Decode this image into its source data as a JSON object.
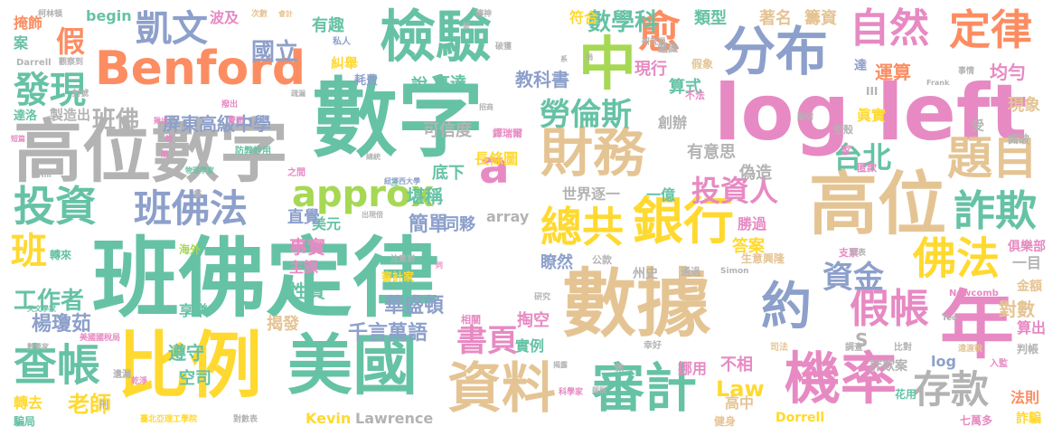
{
  "palette": {
    "green": "#66c2a5",
    "orange": "#fc8d62",
    "blue": "#8da0cb",
    "pink": "#e78ac3",
    "lime": "#a6d854",
    "yellow": "#ffd92f",
    "tan": "#e5c494",
    "gray": "#b3b3b3"
  },
  "words": [
    {
      "id": "w-shuzi",
      "text": "數字",
      "color": "green"
    },
    {
      "id": "w-log-left",
      "text": "log left",
      "color": "pink"
    },
    {
      "id": "w-banfo-dinglu",
      "text": "班佛定律",
      "color": "green"
    },
    {
      "id": "w-gaowei-shuzi",
      "text": "高位數字",
      "color": "gray"
    },
    {
      "id": "w-shuju",
      "text": "數據",
      "color": "tan"
    },
    {
      "id": "w-bili",
      "text": "比例",
      "color": "yellow"
    },
    {
      "id": "w-meiguo",
      "text": "美國",
      "color": "green"
    },
    {
      "id": "w-benford",
      "text": "Benford",
      "color": "orange"
    },
    {
      "id": "w-jianyan",
      "text": "檢驗",
      "color": "green"
    },
    {
      "id": "w-fenbu",
      "text": "分布",
      "color": "blue"
    },
    {
      "id": "w-zhong",
      "text": "中",
      "color": "lime"
    },
    {
      "id": "w-gaowei",
      "text": "高位",
      "color": "tan"
    },
    {
      "id": "w-nian",
      "text": "年",
      "color": "pink"
    },
    {
      "id": "w-caiwu",
      "text": "財務",
      "color": "tan"
    },
    {
      "id": "w-ziliao",
      "text": "資料",
      "color": "tan"
    },
    {
      "id": "w-shenji",
      "text": "審計",
      "color": "green"
    },
    {
      "id": "w-jilu",
      "text": "機率",
      "color": "pink"
    },
    {
      "id": "w-ziran",
      "text": "自然",
      "color": "pink"
    },
    {
      "id": "w-dinglu",
      "text": "定律",
      "color": "orange"
    },
    {
      "id": "w-zonggong",
      "text": "總共",
      "color": "yellow"
    },
    {
      "id": "w-yinhang",
      "text": "銀行",
      "color": "yellow"
    },
    {
      "id": "w-yue",
      "text": "約",
      "color": "blue"
    },
    {
      "id": "w-kaiwen",
      "text": "凱文",
      "color": "blue"
    },
    {
      "id": "w-a",
      "text": "a",
      "color": "pink"
    },
    {
      "id": "w-approx",
      "text": "approx",
      "color": "lime"
    },
    {
      "id": "w-touzi",
      "text": "投資",
      "color": "green"
    },
    {
      "id": "w-banfofa",
      "text": "班佛法",
      "color": "blue"
    },
    {
      "id": "w-chazhang",
      "text": "查帳",
      "color": "green"
    },
    {
      "id": "w-timu",
      "text": "題目",
      "color": "tan"
    },
    {
      "id": "w-foafa",
      "text": "佛法",
      "color": "yellow"
    },
    {
      "id": "w-zhaqi",
      "text": "詐欺",
      "color": "green"
    },
    {
      "id": "w-jiazhang",
      "text": "假帳",
      "color": "pink"
    },
    {
      "id": "w-cunkuan",
      "text": "存款",
      "color": "gray"
    },
    {
      "id": "w-zijin",
      "text": "資金",
      "color": "blue"
    },
    {
      "id": "w-touziren",
      "text": "投資人",
      "color": "pink"
    },
    {
      "id": "w-laolunsi",
      "text": "勞倫斯",
      "color": "green"
    },
    {
      "id": "w-yu",
      "text": "愈",
      "color": "orange"
    },
    {
      "id": "w-taibei",
      "text": "台北",
      "color": "green"
    },
    {
      "id": "w-faxian",
      "text": "發現",
      "color": "green"
    },
    {
      "id": "w-ban",
      "text": "班",
      "color": "yellow"
    },
    {
      "id": "w-jia",
      "text": "假",
      "color": "orange"
    },
    {
      "id": "w-guoli",
      "text": "國立",
      "color": "blue"
    },
    {
      "id": "w-shuxueke",
      "text": "數學科",
      "color": "green"
    },
    {
      "id": "w-fuhe",
      "text": "符合",
      "color": "yellow"
    },
    {
      "id": "w-shuyiye",
      "text": "書頁",
      "color": "pink"
    },
    {
      "id": "w-law",
      "text": "Law",
      "color": "yellow"
    },
    {
      "id": "w-laoshi",
      "text": "老師",
      "color": "yellow"
    },
    {
      "id": "w-pingdong",
      "text": "屏東高級中學",
      "color": "blue"
    },
    {
      "id": "w-banfo",
      "text": "班佛",
      "color": "gray"
    },
    {
      "id": "w-gongzuozhe",
      "text": "工作者",
      "color": "green"
    },
    {
      "id": "w-yangqiongru",
      "text": "楊瓊茹",
      "color": "blue"
    },
    {
      "id": "w-kevin",
      "text": "Kevin",
      "color": "yellow"
    },
    {
      "id": "w-lawrence",
      "text": "Lawrence",
      "color": "gray"
    },
    {
      "id": "w-qianyan",
      "text": "千言萬語",
      "color": "blue"
    },
    {
      "id": "w-huashengdun",
      "text": "華盛頓",
      "color": "blue"
    },
    {
      "id": "w-jiefa",
      "text": "揭發",
      "color": "tan"
    },
    {
      "id": "w-xingzhi",
      "text": "性質",
      "color": "green"
    },
    {
      "id": "w-shishi",
      "text": "事實",
      "color": "pink"
    },
    {
      "id": "w-zhuke",
      "text": "主課",
      "color": "pink"
    },
    {
      "id": "w-zunshou",
      "text": "遵守",
      "color": "green"
    },
    {
      "id": "w-kongsi",
      "text": "空司",
      "color": "green"
    },
    {
      "id": "w-jiandan",
      "text": "簡單",
      "color": "blue"
    },
    {
      "id": "w-tongshu",
      "text": "同夥",
      "color": "blue"
    },
    {
      "id": "w-meiyuan",
      "text": "美元",
      "color": "green"
    },
    {
      "id": "w-zhijue",
      "text": "直覺",
      "color": "blue"
    },
    {
      "id": "w-kanchen",
      "text": "堪稱",
      "color": "green"
    },
    {
      "id": "w-jiaokeshu",
      "text": "教科書",
      "color": "blue"
    },
    {
      "id": "w-youyisi",
      "text": "有意思",
      "color": "gray"
    },
    {
      "id": "w-weizao",
      "text": "偽造",
      "color": "gray"
    },
    {
      "id": "w-yiyi",
      "text": "一億",
      "color": "green"
    },
    {
      "id": "w-shijie",
      "text": "世界逐一",
      "color": "gray"
    },
    {
      "id": "w-array",
      "text": "array",
      "color": "gray"
    },
    {
      "id": "w-changtiao",
      "text": "長條圖",
      "color": "yellow"
    },
    {
      "id": "w-dixia",
      "text": "底下",
      "color": "green"
    },
    {
      "id": "w-kexindu",
      "text": "可信度",
      "color": "gray"
    },
    {
      "id": "w-shuo",
      "text": "說",
      "color": "green"
    },
    {
      "id": "w-gaoda",
      "text": "高達",
      "color": "green"
    },
    {
      "id": "w-youqu",
      "text": "有趣",
      "color": "green"
    },
    {
      "id": "w-jiuju",
      "text": "糾舉",
      "color": "yellow"
    },
    {
      "id": "w-haofei",
      "text": "耗費",
      "color": "blue"
    },
    {
      "id": "w-xianxing",
      "text": "現行",
      "color": "pink"
    },
    {
      "id": "w-suanshi",
      "text": "算式",
      "color": "green"
    },
    {
      "id": "w-leixing",
      "text": "類型",
      "color": "green"
    },
    {
      "id": "w-zhuming",
      "text": "著名",
      "color": "tan"
    },
    {
      "id": "w-chouzi",
      "text": "籌資",
      "color": "tan"
    },
    {
      "id": "w-yunsuan",
      "text": "運算",
      "color": "orange"
    },
    {
      "id": "w-junyun",
      "text": "均勻",
      "color": "pink"
    },
    {
      "id": "w-xianxiang",
      "text": "現象",
      "color": "tan"
    },
    {
      "id": "w-zhenshi",
      "text": "眞實",
      "color": "yellow"
    },
    {
      "id": "w-chuangban",
      "text": "創辦",
      "color": "gray"
    },
    {
      "id": "w-shengguo",
      "text": "勝過",
      "color": "pink"
    },
    {
      "id": "w-daan",
      "text": "答案",
      "color": "yellow"
    },
    {
      "id": "w-liaoran",
      "text": "瞭然",
      "color": "blue"
    },
    {
      "id": "w-shili",
      "text": "實例",
      "color": "green"
    },
    {
      "id": "w-taokong",
      "text": "掏空",
      "color": "pink"
    },
    {
      "id": "w-gaozhong",
      "text": "高中",
      "color": "tan"
    },
    {
      "id": "w-buxiang",
      "text": "不相",
      "color": "pink"
    },
    {
      "id": "w-nuoyong",
      "text": "挪用",
      "color": "pink"
    },
    {
      "id": "w-zhaqianan",
      "text": "詐欺案",
      "color": "gray"
    },
    {
      "id": "w-log",
      "text": "log",
      "color": "blue"
    },
    {
      "id": "w-duishu",
      "text": "對數",
      "color": "tan"
    },
    {
      "id": "w-suanchu",
      "text": "算出",
      "color": "pink"
    },
    {
      "id": "w-yimu",
      "text": "一目",
      "color": "gray"
    },
    {
      "id": "w-faze",
      "text": "法則",
      "color": "orange"
    },
    {
      "id": "w-zhapian",
      "text": "詐騙",
      "color": "yellow"
    },
    {
      "id": "w-s",
      "text": "S",
      "color": "gray"
    },
    {
      "id": "w-yanjiu",
      "text": "研究",
      "color": "gray"
    },
    {
      "id": "w-zhuanqu",
      "text": "轉去",
      "color": "yellow"
    },
    {
      "id": "w-bohe",
      "text": "波及",
      "color": "pink"
    },
    {
      "id": "w-begin",
      "text": "begin",
      "color": "green"
    },
    {
      "id": "w-an",
      "text": "案",
      "color": "green"
    },
    {
      "id": "w-yanshi",
      "text": "掩飾",
      "color": "orange"
    },
    {
      "id": "w-zhizaochu",
      "text": "製造出",
      "color": "gray"
    },
    {
      "id": "w-dazhu",
      "text": "達洛",
      "color": "green"
    },
    {
      "id": "w-duanpian",
      "text": "短篇",
      "color": "pink"
    },
    {
      "id": "w-dorrell",
      "text": "Dorrell",
      "color": "yellow"
    },
    {
      "id": "w-darrell",
      "text": "Darrell",
      "color": "gray"
    },
    {
      "id": "w-newcomb",
      "text": "Newcomb",
      "color": "pink"
    },
    {
      "id": "w-simon",
      "text": "Simon",
      "color": "gray"
    },
    {
      "id": "w-frank",
      "text": "Frank",
      "color": "gray"
    },
    {
      "id": "w-ted",
      "text": "Ted",
      "color": "gray"
    },
    {
      "id": "w-da",
      "text": "達",
      "color": "blue"
    },
    {
      "id": "w-jia2",
      "text": "家",
      "color": "pink"
    },
    {
      "id": "w-shou",
      "text": "受",
      "color": "gray"
    },
    {
      "id": "w-shipo",
      "text": "識破",
      "color": "gray"
    },
    {
      "id": "w-zhizhe",
      "text": "事情",
      "color": "gray"
    },
    {
      "id": "w-julebu",
      "text": "俱樂部",
      "color": "pink"
    },
    {
      "id": "w-jine",
      "text": "金額",
      "color": "tan"
    },
    {
      "id": "w-panzhang",
      "text": "判帳",
      "color": "gray"
    },
    {
      "id": "w-qiwanduo",
      "text": "七萬多",
      "color": "pink"
    },
    {
      "id": "w-jianshen",
      "text": "健身",
      "color": "tan"
    },
    {
      "id": "w-huayong",
      "text": "花用",
      "color": "green"
    },
    {
      "id": "w-bidui",
      "text": "比對",
      "color": "gray"
    },
    {
      "id": "w-diaocha",
      "text": "調查",
      "color": "gray"
    },
    {
      "id": "w-sifa",
      "text": "司法",
      "color": "tan"
    },
    {
      "id": "w-xingyun",
      "text": "幸好",
      "color": "gray"
    },
    {
      "id": "w-zuo",
      "text": "做",
      "color": "gray"
    },
    {
      "id": "w-shengyi",
      "text": "生意興隆",
      "color": "tan"
    },
    {
      "id": "w-tongguo",
      "text": "通過",
      "color": "gray"
    },
    {
      "id": "w-zhoushi",
      "text": "州史",
      "color": "gray"
    },
    {
      "id": "w-gongkuan",
      "text": "公款",
      "color": "gray"
    },
    {
      "id": "w-xiangguan",
      "text": "相關",
      "color": "pink"
    },
    {
      "id": "w-shenji2",
      "text": "審計家",
      "color": "yellow"
    },
    {
      "id": "w-xiangle",
      "text": "享樂",
      "color": "green"
    },
    {
      "id": "w-haiwai",
      "text": "海外",
      "color": "lime"
    },
    {
      "id": "w-zhuanlai",
      "text": "轉來",
      "color": "green"
    },
    {
      "id": "w-yiliuo",
      "text": "遺漏",
      "color": "gray"
    },
    {
      "id": "w-xingci",
      "text": "刑",
      "color": "gray"
    },
    {
      "id": "w-pianju",
      "text": "騙局",
      "color": "green"
    },
    {
      "id": "w-qianjing",
      "text": "乾淨",
      "color": "pink"
    },
    {
      "id": "w-duishubiao",
      "text": "對數表",
      "color": "gray"
    },
    {
      "id": "w-taibeiligong",
      "text": "臺北亞理工學院",
      "color": "yellow"
    },
    {
      "id": "w-kexuejia",
      "text": "科學家",
      "color": "pink"
    },
    {
      "id": "w-meiguoguoshuiju",
      "text": "美國國稅局",
      "color": "pink"
    },
    {
      "id": "w-tianwenxuejia",
      "text": "天文學家",
      "color": "green"
    },
    {
      "id": "w-shuxuejia",
      "text": "數學家",
      "color": "gray"
    },
    {
      "id": "w-wuli",
      "text": "物理學家",
      "color": "green"
    },
    {
      "id": "w-fangshen",
      "text": "防弊妙用",
      "color": "green"
    },
    {
      "id": "w-niuyue",
      "text": "紐澤西大學",
      "color": "blue"
    },
    {
      "id": "w-shanquan",
      "text": "疏漏",
      "color": "gray"
    },
    {
      "id": "w-tiexian",
      "text": "貼切",
      "color": "gray"
    },
    {
      "id": "w-kongshu",
      "text": "空殼",
      "color": "gray"
    },
    {
      "id": "w-niqian",
      "text": "匿款",
      "color": "pink"
    },
    {
      "id": "w-zhipiao",
      "text": "支票",
      "color": "pink"
    },
    {
      "id": "w-rujian",
      "text": "入監",
      "color": "pink"
    },
    {
      "id": "w-tongshi",
      "text": "遠渡稅",
      "color": "tan"
    },
    {
      "id": "w-huiyuan",
      "text": "會計",
      "color": "tan"
    },
    {
      "id": "w-zhuanshen",
      "text": "傳神",
      "color": "gray"
    },
    {
      "id": "w-cishu",
      "text": "次數",
      "color": "tan"
    },
    {
      "id": "w-kelincun",
      "text": "柯林頓",
      "color": "gray"
    },
    {
      "id": "w-jiaxiang",
      "text": "假象",
      "color": "tan"
    },
    {
      "id": "w-siren",
      "text": "私人",
      "color": "blue"
    },
    {
      "id": "w-yanjiuyuan",
      "text": "研究員",
      "color": "gray"
    },
    {
      "id": "w-jianding",
      "text": "鑑識",
      "color": "gray"
    },
    {
      "id": "w-pohuai",
      "text": "破獲",
      "color": "gray"
    },
    {
      "id": "w-zhurui",
      "text": "鐸瑞爾",
      "color": "pink"
    },
    {
      "id": "w-chanqi",
      "text": "撥出",
      "color": "pink"
    },
    {
      "id": "w-ti",
      "text": "捐",
      "color": "gray"
    },
    {
      "id": "w-bufa",
      "text": "不法",
      "color": "pink"
    },
    {
      "id": "w-zhiqian",
      "text": "之間",
      "color": "pink"
    },
    {
      "id": "w-guanchadao",
      "text": "觀察到",
      "color": "gray"
    },
    {
      "id": "w-fenghao",
      "text": "封號",
      "color": "gray"
    },
    {
      "id": "w-shuangmian",
      "text": "雙面",
      "color": "pink"
    },
    {
      "id": "w-sanjiao",
      "text": "三",
      "color": "green"
    },
    {
      "id": "w-bi",
      "text": "筆",
      "color": "gray"
    },
    {
      "id": "w-jijiu",
      "text": "總統",
      "color": "gray"
    },
    {
      "id": "w-lei",
      "text": "類",
      "color": "pink"
    },
    {
      "id": "w-fabiao",
      "text": "發表",
      "color": "gray"
    },
    {
      "id": "w-zhuyi",
      "text": "注意到",
      "color": "gray"
    },
    {
      "id": "w-chuxiantong",
      "text": "出現倍",
      "color": "gray"
    },
    {
      "id": "w-tongxiang",
      "text": "同",
      "color": "pink"
    },
    {
      "id": "w-iii",
      "text": "III",
      "color": "gray"
    },
    {
      "id": "w-zhishu",
      "text": "精",
      "color": "pink"
    },
    {
      "id": "w-chunchu",
      "text": "揪出",
      "color": "pink"
    },
    {
      "id": "w-lianbang",
      "text": "報稅",
      "color": "gray"
    },
    {
      "id": "w-buzu",
      "text": "揭露",
      "color": "gray"
    },
    {
      "id": "w-zhuanhu",
      "text": "破",
      "color": "gray"
    },
    {
      "id": "w-zhaoshang",
      "text": "招商",
      "color": "gray"
    },
    {
      "id": "w-xi",
      "text": "系",
      "color": "gray"
    },
    {
      "id": "w-hill",
      "text": "Hill",
      "color": "gray"
    }
  ]
}
